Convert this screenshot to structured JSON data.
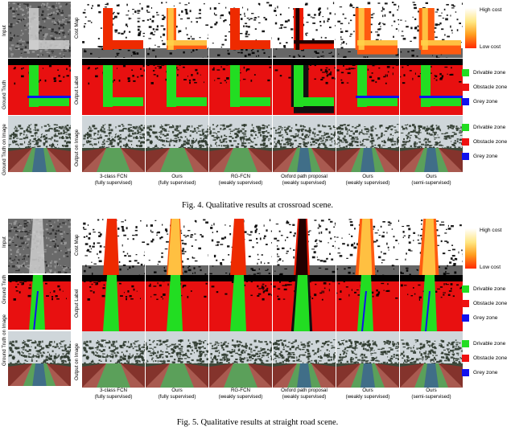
{
  "figures": [
    {
      "caption": "Fig. 4.   Qualitative results at crossroad scene.",
      "scene": "crossroad",
      "left_row_labels": [
        "Input",
        "Ground Truth",
        "Ground Truth on Image"
      ],
      "mid_row_labels": [
        "Cost Map",
        "Output Label",
        "Output on Image"
      ],
      "columns": [
        {
          "line1": "3-class FCN",
          "line2": "(fully supervised)"
        },
        {
          "line1": "Ours",
          "line2": "(fully supervised)"
        },
        {
          "line1": "RG-FCN",
          "line2": "(weakly supervised)"
        },
        {
          "line1": "Oxford path proposal",
          "line2": "(weakly supervised)"
        },
        {
          "line1": "Ours",
          "line2": "(weakly supervised)"
        },
        {
          "line1": "Ours",
          "line2": "(semi-supervised)"
        }
      ],
      "legend": {
        "high": "High cost",
        "low": "Low cost",
        "label_items": [
          {
            "label": "Drivable zone",
            "color": "#22dd22"
          },
          {
            "label": "Obstacle zone",
            "color": "#ee1111"
          },
          {
            "label": "Grey zone",
            "color": "#1111ee"
          }
        ],
        "overlay_items": [
          {
            "label": "Drivable zone",
            "color": "#22dd22"
          },
          {
            "label": "Obstacle zone",
            "color": "#ee1111"
          },
          {
            "label": "Grey zone",
            "color": "#1111ee"
          }
        ]
      }
    },
    {
      "caption": "Fig. 5.   Qualitative results at straight road scene.",
      "scene": "straight",
      "left_row_labels": [
        "Input",
        "Ground Truth",
        "Ground Truth on Image"
      ],
      "mid_row_labels": [
        "Cost Map",
        "Output Label",
        "Output on Image"
      ],
      "columns": [
        {
          "line1": "3-class FCN",
          "line2": "(fully supervised)"
        },
        {
          "line1": "Ours",
          "line2": "(fully supervised)"
        },
        {
          "line1": "RG-FCN",
          "line2": "(weakly supervised)"
        },
        {
          "line1": "Oxford path proposal",
          "line2": "(weakly supervised)"
        },
        {
          "line1": "Ours",
          "line2": "(weakly supervised)"
        },
        {
          "line1": "Ours",
          "line2": "(semi-supervised)"
        }
      ],
      "legend": {
        "high": "High cost",
        "low": "Low cost",
        "label_items": [
          {
            "label": "Drivable zone",
            "color": "#22dd22"
          },
          {
            "label": "Obstacle zone",
            "color": "#ee1111"
          },
          {
            "label": "Grey zone",
            "color": "#1111ee"
          }
        ],
        "overlay_items": [
          {
            "label": "Drivable zone",
            "color": "#22dd22"
          },
          {
            "label": "Obstacle zone",
            "color": "#ee1111"
          },
          {
            "label": "Grey zone",
            "color": "#1111ee"
          }
        ]
      }
    }
  ]
}
